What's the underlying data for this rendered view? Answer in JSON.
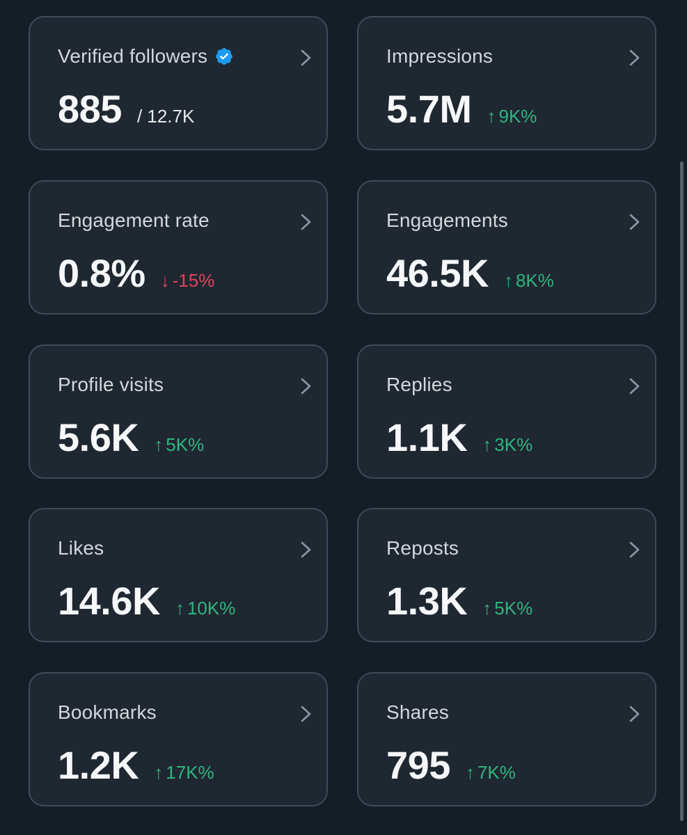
{
  "colors": {
    "background": "#151d26",
    "card": "#1f2731",
    "border": "#3e4b5a",
    "up": "#2fb67e",
    "down": "#e0445a",
    "verified_badge": "#1d9bf0"
  },
  "cards": {
    "verified_followers": {
      "title": "Verified followers",
      "value": "885",
      "total": "/ 12.7K",
      "icon": "verified-badge-icon"
    },
    "impressions": {
      "title": "Impressions",
      "value": "5.7M",
      "arrow": "↑",
      "delta": "9K%"
    },
    "engagement_rate": {
      "title": "Engagement rate",
      "value": "0.8%",
      "arrow": "↓",
      "delta": "-15%"
    },
    "engagements": {
      "title": "Engagements",
      "value": "46.5K",
      "arrow": "↑",
      "delta": "8K%"
    },
    "profile_visits": {
      "title": "Profile visits",
      "value": "5.6K",
      "arrow": "↑",
      "delta": "5K%"
    },
    "replies": {
      "title": "Replies",
      "value": "1.1K",
      "arrow": "↑",
      "delta": "3K%"
    },
    "likes": {
      "title": "Likes",
      "value": "14.6K",
      "arrow": "↑",
      "delta": "10K%"
    },
    "reposts": {
      "title": "Reposts",
      "value": "1.3K",
      "arrow": "↑",
      "delta": "5K%"
    },
    "bookmarks": {
      "title": "Bookmarks",
      "value": "1.2K",
      "arrow": "↑",
      "delta": "17K%"
    },
    "shares": {
      "title": "Shares",
      "value": "795",
      "arrow": "↑",
      "delta": "7K%"
    }
  }
}
